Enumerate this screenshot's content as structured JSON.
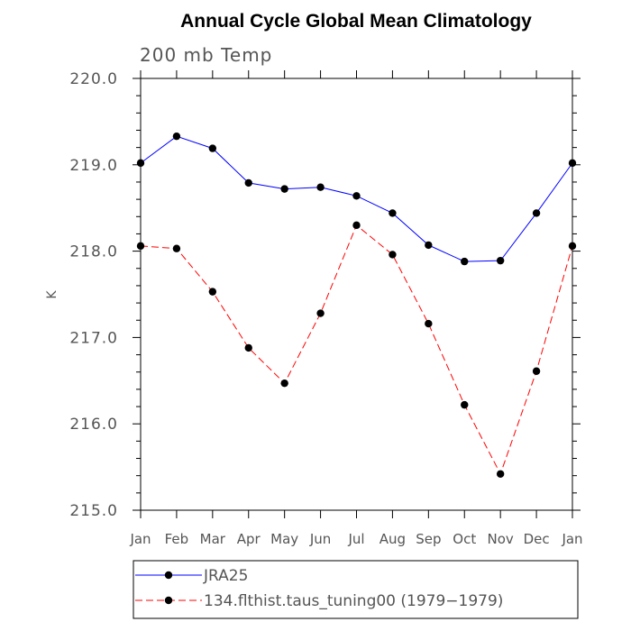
{
  "chart_data": {
    "type": "line",
    "title": "Annual Cycle Global Mean Climatology",
    "subtitle": "200 mb Temp",
    "xlabel": "",
    "ylabel": "K",
    "categories": [
      "Jan",
      "Feb",
      "Mar",
      "Apr",
      "May",
      "Jun",
      "Jul",
      "Aug",
      "Sep",
      "Oct",
      "Nov",
      "Dec",
      "Jan"
    ],
    "ylim": [
      215.0,
      220.0
    ],
    "yticks": [
      "215.0",
      "216.0",
      "217.0",
      "218.0",
      "219.0",
      "220.0"
    ],
    "series": [
      {
        "name": "JRA25",
        "color": "#0000ff",
        "line_style": "solid",
        "marker": "circle",
        "values": [
          219.02,
          219.33,
          219.19,
          218.79,
          218.72,
          218.74,
          218.64,
          218.44,
          218.07,
          217.88,
          217.89,
          218.44,
          219.02
        ]
      },
      {
        "name": "134.flthist.taus_tuning00 (1979−1979)",
        "color": "#ff0000",
        "line_style": "dashed",
        "marker": "circle",
        "values": [
          218.06,
          218.03,
          217.53,
          216.88,
          216.47,
          217.28,
          218.3,
          217.96,
          217.16,
          216.22,
          215.42,
          216.61,
          218.06
        ]
      }
    ],
    "legend_position": "bottom"
  }
}
